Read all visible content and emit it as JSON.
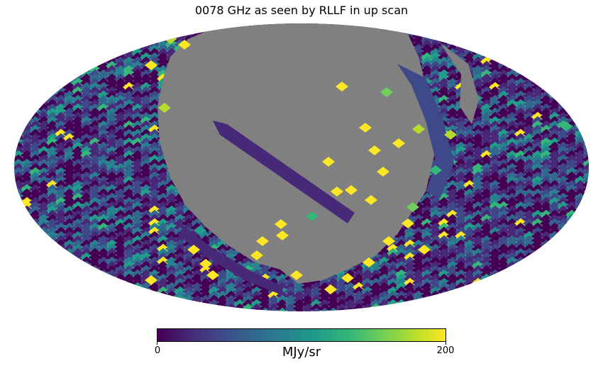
{
  "title": "0078 GHz as seen by RLLF in up scan",
  "colorbar": {
    "min_label": "0",
    "max_label": "200",
    "unit": "MJy/sr",
    "colormap": "viridis",
    "stops": [
      "#440154",
      "#482878",
      "#3e4989",
      "#31688e",
      "#26828e",
      "#1f9e89",
      "#35b779",
      "#6ece58",
      "#b5de2b",
      "#fde725"
    ]
  },
  "map": {
    "projection": "mollweide",
    "masked_color": "#808080",
    "background_color": "#ffffff"
  }
}
